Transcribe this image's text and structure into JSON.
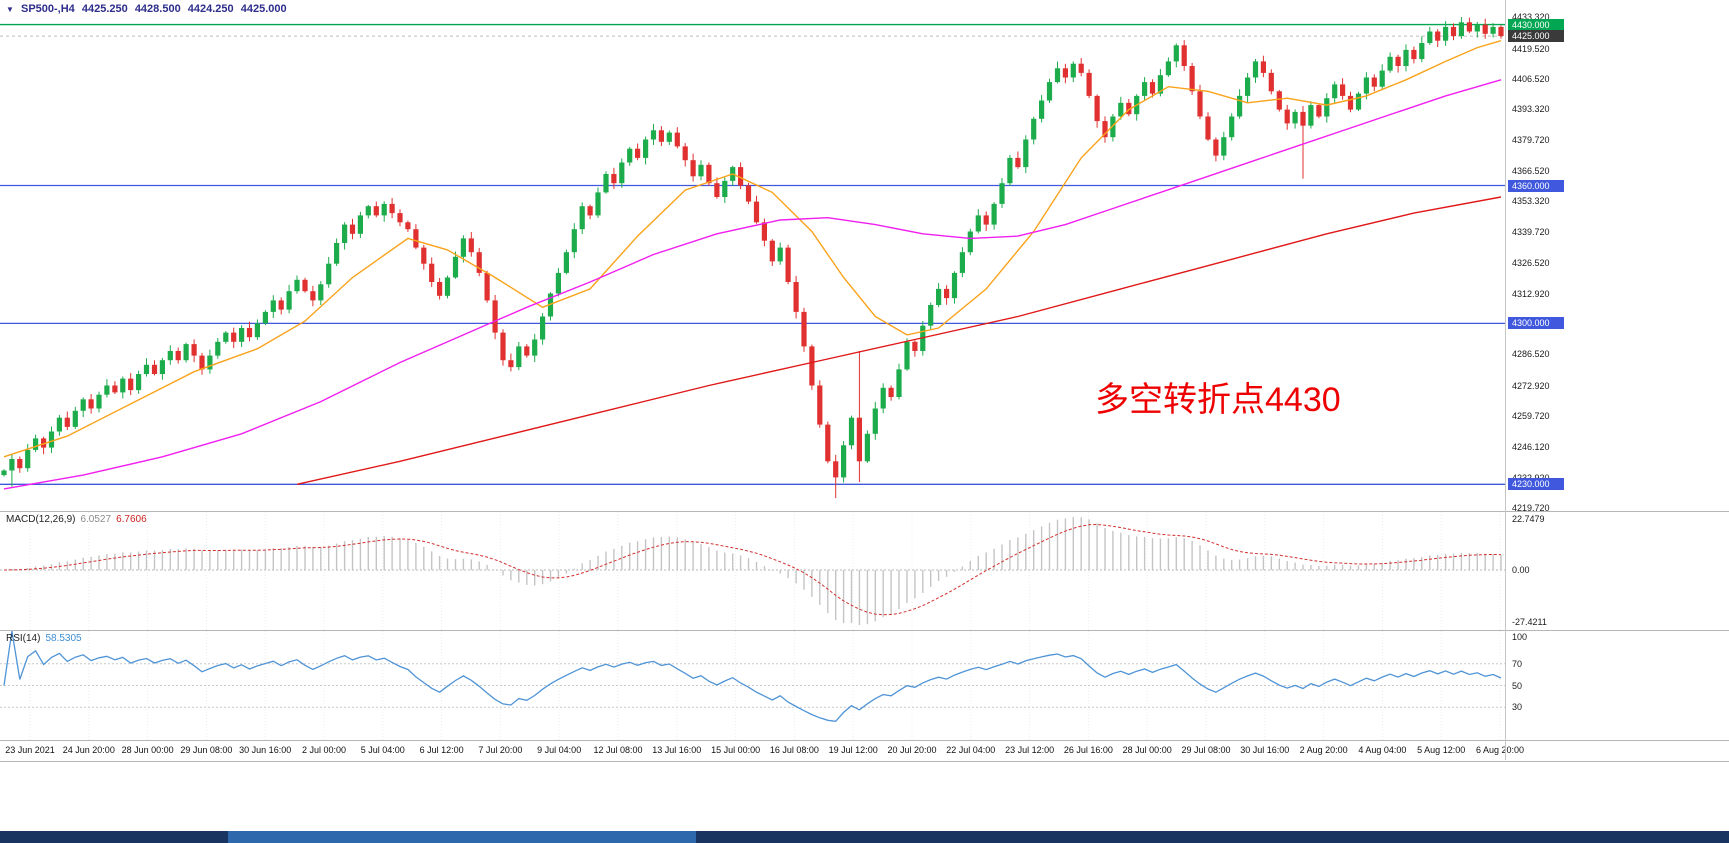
{
  "window": {
    "dropdown_icon": "▼",
    "symbol": "SP500-,H4",
    "open": "4425.250",
    "high": "4428.500",
    "low": "4424.250",
    "close": "4425.000"
  },
  "annotation": {
    "text": "多空转折点4430"
  },
  "colors": {
    "up": "#1cac4b",
    "down": "#e03030",
    "ma_fast": "#f9a21a",
    "ma_mid": "#f01ff0",
    "ma_slow": "#e01818",
    "hline_blue": "#3f58de",
    "hline_green": "#00a651",
    "macd_hist": "#c4c4c4",
    "macd_signal": "#d33030",
    "rsi_line": "#4f94d6",
    "annotation_red": "#ee0000",
    "scrollbar_track": "#1a3462",
    "scrollbar_thumb": "#2d68ad"
  },
  "chart_data": {
    "type": "candlestick",
    "title": "SP500-,H4",
    "symbol": "SP500-",
    "timeframe": "H4",
    "price_range": [
      4218.4,
      4440.7
    ],
    "x_labels": [
      "23 Jun 2021",
      "24 Jun 20:00",
      "28 Jun 00:00",
      "29 Jun 08:00",
      "30 Jun 16:00",
      "2 Jul 00:00",
      "5 Jul 04:00",
      "6 Jul 12:00",
      "7 Jul 20:00",
      "9 Jul 04:00",
      "12 Jul 08:00",
      "13 Jul 16:00",
      "15 Jul 00:00",
      "16 Jul 08:00",
      "19 Jul 12:00",
      "20 Jul 20:00",
      "22 Jul 04:00",
      "23 Jul 12:00",
      "26 Jul 16:00",
      "28 Jul 00:00",
      "29 Jul 08:00",
      "30 Jul 16:00",
      "2 Aug 20:00",
      "4 Aug 04:00",
      "5 Aug 12:00",
      "6 Aug 20:00"
    ],
    "closes": [
      4236,
      4241,
      4237,
      4245,
      4250,
      4246,
      4253,
      4259,
      4255,
      4262,
      4267,
      4263,
      4269,
      4273,
      4270,
      4276,
      4271,
      4278,
      4282,
      4278,
      4284,
      4288,
      4284,
      4291,
      4286,
      4280,
      4286,
      4292,
      4296,
      4292,
      4298,
      4294,
      4300,
      4305,
      4310,
      4306,
      4314,
      4319,
      4314,
      4310,
      4317,
      4326,
      4335,
      4343,
      4339,
      4347,
      4351,
      4347,
      4352,
      4348,
      4344,
      4341,
      4333,
      4326,
      4318,
      4312,
      4320,
      4329,
      4337,
      4331,
      4322,
      4310,
      4296,
      4284,
      4281,
      4290,
      4286,
      4293,
      4303,
      4313,
      4322,
      4331,
      4341,
      4351,
      4347,
      4357,
      4365,
      4361,
      4370,
      4376,
      4372,
      4380,
      4384,
      4379,
      4383,
      4377,
      4371,
      4364,
      4369,
      4361,
      4355,
      4362,
      4368,
      4360,
      4353,
      4344,
      4336,
      4327,
      4333,
      4318,
      4305,
      4290,
      4273,
      4256,
      4240,
      4233,
      4247,
      4259,
      4240,
      4252,
      4263,
      4272,
      4268,
      4280,
      4292,
      4288,
      4299,
      4308,
      4315,
      4311,
      4322,
      4331,
      4340,
      4347,
      4343,
      4352,
      4361,
      4372,
      4368,
      4380,
      4389,
      4397,
      4405,
      4411,
      4407,
      4413,
      4409,
      4399,
      4388,
      4381,
      4390,
      4396,
      4391,
      4399,
      4405,
      4400,
      4408,
      4414,
      4421,
      4412,
      4401,
      4390,
      4380,
      4373,
      4381,
      4390,
      4399,
      4407,
      4414,
      4409,
      4401,
      4393,
      4387,
      4392,
      4386,
      4395,
      4390,
      4398,
      4404,
      4399,
      4393,
      4400,
      4407,
      4403,
      4410,
      4416,
      4412,
      4419,
      4415,
      4422,
      4427,
      4423,
      4429,
      4425,
      4431,
      4427,
      4430,
      4426,
      4429,
      4425
    ],
    "wick_overrides": [
      {
        "i": 1,
        "low": 4229
      },
      {
        "i": 105,
        "low": 4224
      },
      {
        "i": 108,
        "low": 4231,
        "high": 4288
      },
      {
        "i": 164,
        "low": 4363
      },
      {
        "i": 184,
        "high": 4433.3
      }
    ],
    "price_ticks": [
      "4433.320",
      "4419.520",
      "4406.520",
      "4393.320",
      "4379.720",
      "4366.520",
      "4353.320",
      "4339.720",
      "4326.520",
      "4312.920",
      "4299.720",
      "4286.520",
      "4272.920",
      "4259.720",
      "4246.120",
      "4232.920",
      "4219.720"
    ],
    "badges": [
      {
        "label": "4430.000",
        "price": 4430.0,
        "style": "green"
      },
      {
        "label": "4425.000",
        "price": 4425.0,
        "style": "dark"
      },
      {
        "label": "4360.000",
        "price": 4360.0,
        "style": "blue"
      },
      {
        "label": "4300.000",
        "price": 4300.0,
        "style": "blue"
      },
      {
        "label": "4230.000",
        "price": 4230.0,
        "style": "blue"
      }
    ],
    "hlines": [
      {
        "price": 4430.0,
        "color": "#00a651",
        "width": 1.4,
        "dash": ""
      },
      {
        "price": 4425.0,
        "color": "#bdbdbd",
        "width": 1,
        "dash": "3,3"
      },
      {
        "price": 4360.0,
        "color": "#3f58de",
        "width": 1.3,
        "dash": ""
      },
      {
        "price": 4300.0,
        "color": "#3f58de",
        "width": 1.3,
        "dash": ""
      },
      {
        "price": 4230.0,
        "color": "#3f58de",
        "width": 1.3,
        "dash": ""
      }
    ],
    "moving_averages": [
      {
        "name": "ma-fast",
        "color": "#f9a21a",
        "anchors": [
          [
            0,
            4242
          ],
          [
            8,
            4251
          ],
          [
            16,
            4265
          ],
          [
            24,
            4279
          ],
          [
            32,
            4289
          ],
          [
            38,
            4301
          ],
          [
            44,
            4320
          ],
          [
            51,
            4337
          ],
          [
            56,
            4332
          ],
          [
            62,
            4320
          ],
          [
            68,
            4307
          ],
          [
            74,
            4315
          ],
          [
            80,
            4338
          ],
          [
            86,
            4358
          ],
          [
            92,
            4365
          ],
          [
            97,
            4357
          ],
          [
            102,
            4340
          ],
          [
            106,
            4320
          ],
          [
            110,
            4303
          ],
          [
            114,
            4295
          ],
          [
            118,
            4298
          ],
          [
            124,
            4315
          ],
          [
            130,
            4340
          ],
          [
            136,
            4372
          ],
          [
            142,
            4393
          ],
          [
            147,
            4403
          ],
          [
            152,
            4401
          ],
          [
            157,
            4396
          ],
          [
            162,
            4398
          ],
          [
            167,
            4395
          ],
          [
            172,
            4399
          ],
          [
            177,
            4406
          ],
          [
            182,
            4414
          ],
          [
            186,
            4420
          ],
          [
            189,
            4423
          ]
        ]
      },
      {
        "name": "ma-mid",
        "color": "#f01ff0",
        "anchors": [
          [
            0,
            4228
          ],
          [
            10,
            4234
          ],
          [
            20,
            4242
          ],
          [
            30,
            4252
          ],
          [
            40,
            4266
          ],
          [
            50,
            4283
          ],
          [
            58,
            4295
          ],
          [
            66,
            4307
          ],
          [
            74,
            4318
          ],
          [
            82,
            4330
          ],
          [
            90,
            4339
          ],
          [
            98,
            4345
          ],
          [
            104,
            4346
          ],
          [
            110,
            4343
          ],
          [
            116,
            4339
          ],
          [
            122,
            4337
          ],
          [
            128,
            4338
          ],
          [
            134,
            4343
          ],
          [
            140,
            4350
          ],
          [
            146,
            4357
          ],
          [
            152,
            4364
          ],
          [
            158,
            4371
          ],
          [
            164,
            4378
          ],
          [
            170,
            4385
          ],
          [
            176,
            4392
          ],
          [
            182,
            4399
          ],
          [
            189,
            4406
          ]
        ]
      },
      {
        "name": "ma-slow",
        "color": "#e01818",
        "anchors": [
          [
            37,
            4230
          ],
          [
            50,
            4240
          ],
          [
            63,
            4251
          ],
          [
            76,
            4262
          ],
          [
            89,
            4273
          ],
          [
            102,
            4283
          ],
          [
            115,
            4293
          ],
          [
            128,
            4303
          ],
          [
            141,
            4315
          ],
          [
            154,
            4327
          ],
          [
            167,
            4339
          ],
          [
            178,
            4348
          ],
          [
            189,
            4355
          ]
        ]
      }
    ],
    "indicators": {
      "macd": {
        "label": "MACD(12,26,9)",
        "value_main": "6.0527",
        "value_signal": "6.7606",
        "periods": [
          12,
          26,
          9
        ],
        "axis_labels": [
          "22.7479",
          "0.00",
          "-27.4211"
        ]
      },
      "rsi": {
        "label": "RSI(14)",
        "value": "58.5305",
        "period": 14,
        "levels": [
          70,
          50,
          30
        ],
        "axis": [
          {
            "label": "100",
            "value": 100
          },
          {
            "label": "70",
            "value": 70
          },
          {
            "label": "50",
            "value": 50
          },
          {
            "label": "30",
            "value": 30
          }
        ]
      }
    }
  }
}
